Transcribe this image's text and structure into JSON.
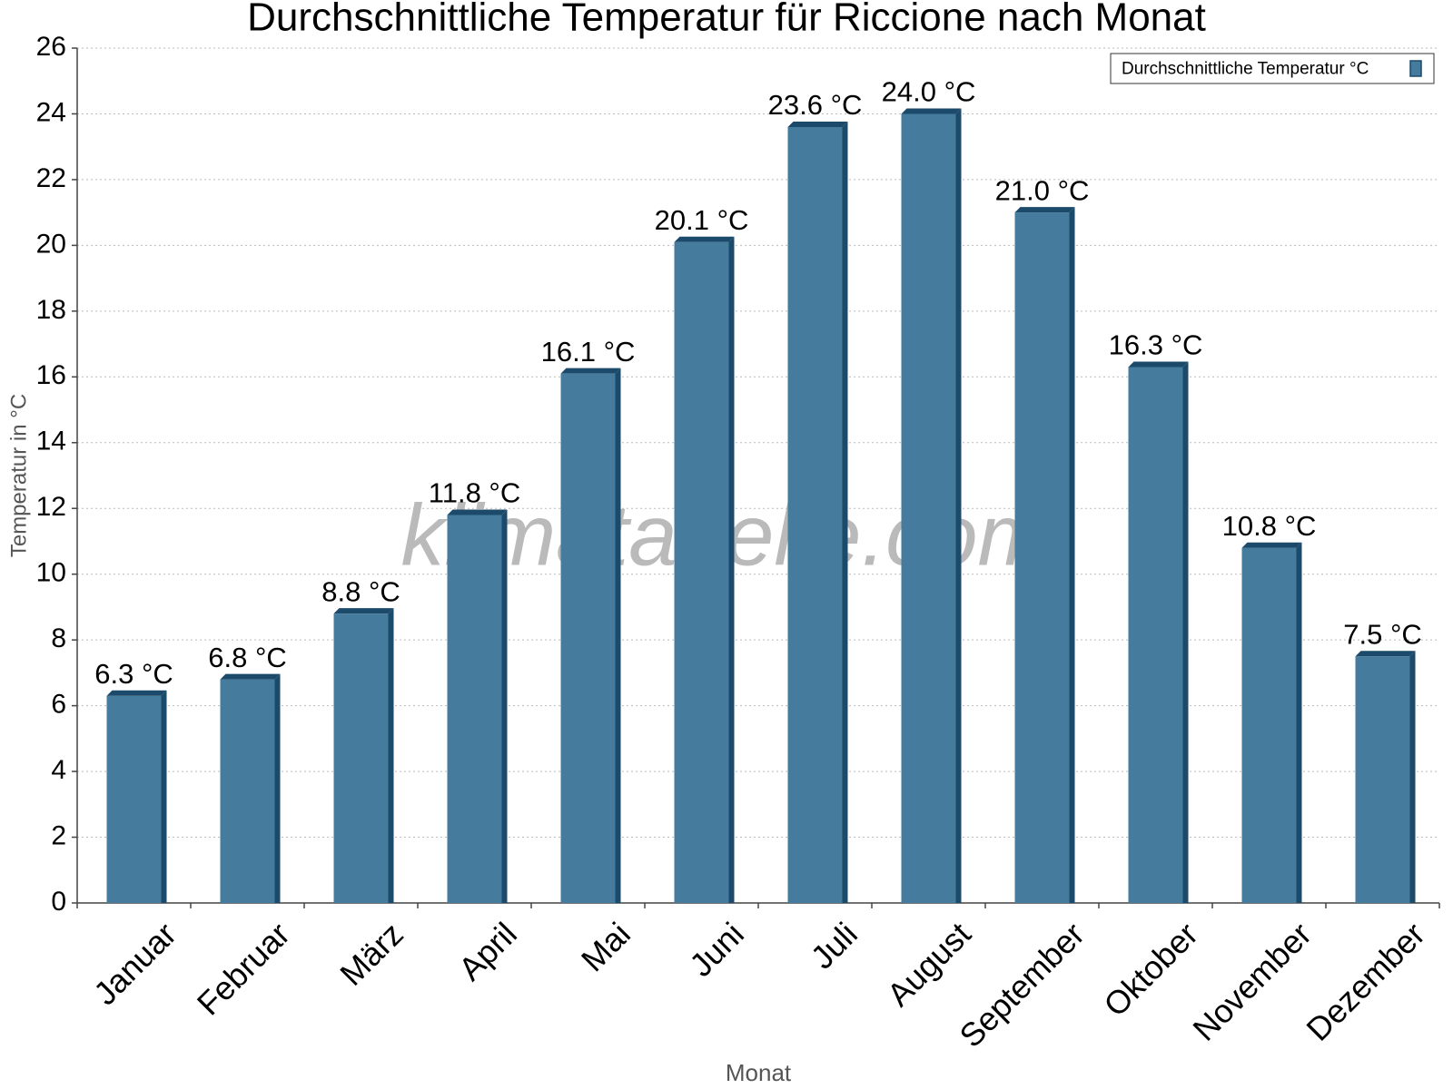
{
  "chart_data": {
    "type": "bar",
    "title": "Durchschnittliche Temperatur für Riccione nach Monat",
    "watermark": "klimatabelle.com",
    "x_label": "Monat",
    "y_label": "Temperatur in °C",
    "categories": [
      "Januar",
      "Februar",
      "März",
      "April",
      "Mai",
      "Juni",
      "Juli",
      "August",
      "September",
      "Oktober",
      "November",
      "Dezember"
    ],
    "series": [
      {
        "name": "Durchschnittliche Temperatur °C",
        "color": "#457b9d",
        "values": [
          6.3,
          6.8,
          8.8,
          11.8,
          16.1,
          20.1,
          23.6,
          24.0,
          21.0,
          16.3,
          10.8,
          7.5
        ],
        "value_labels": [
          "6.3 °C",
          "6.8 °C",
          "8.8 °C",
          "11.8 °C",
          "16.1 °C",
          "20.1 °C",
          "23.6 °C",
          "24.0 °C",
          "21.0 °C",
          "16.3 °C",
          "10.8 °C",
          "7.5 °C"
        ]
      }
    ],
    "ylim": [
      0,
      26
    ],
    "yticks": [
      0,
      2,
      4,
      6,
      8,
      10,
      12,
      14,
      16,
      18,
      20,
      22,
      24,
      26
    ],
    "grid": true,
    "legend": "top-right"
  }
}
